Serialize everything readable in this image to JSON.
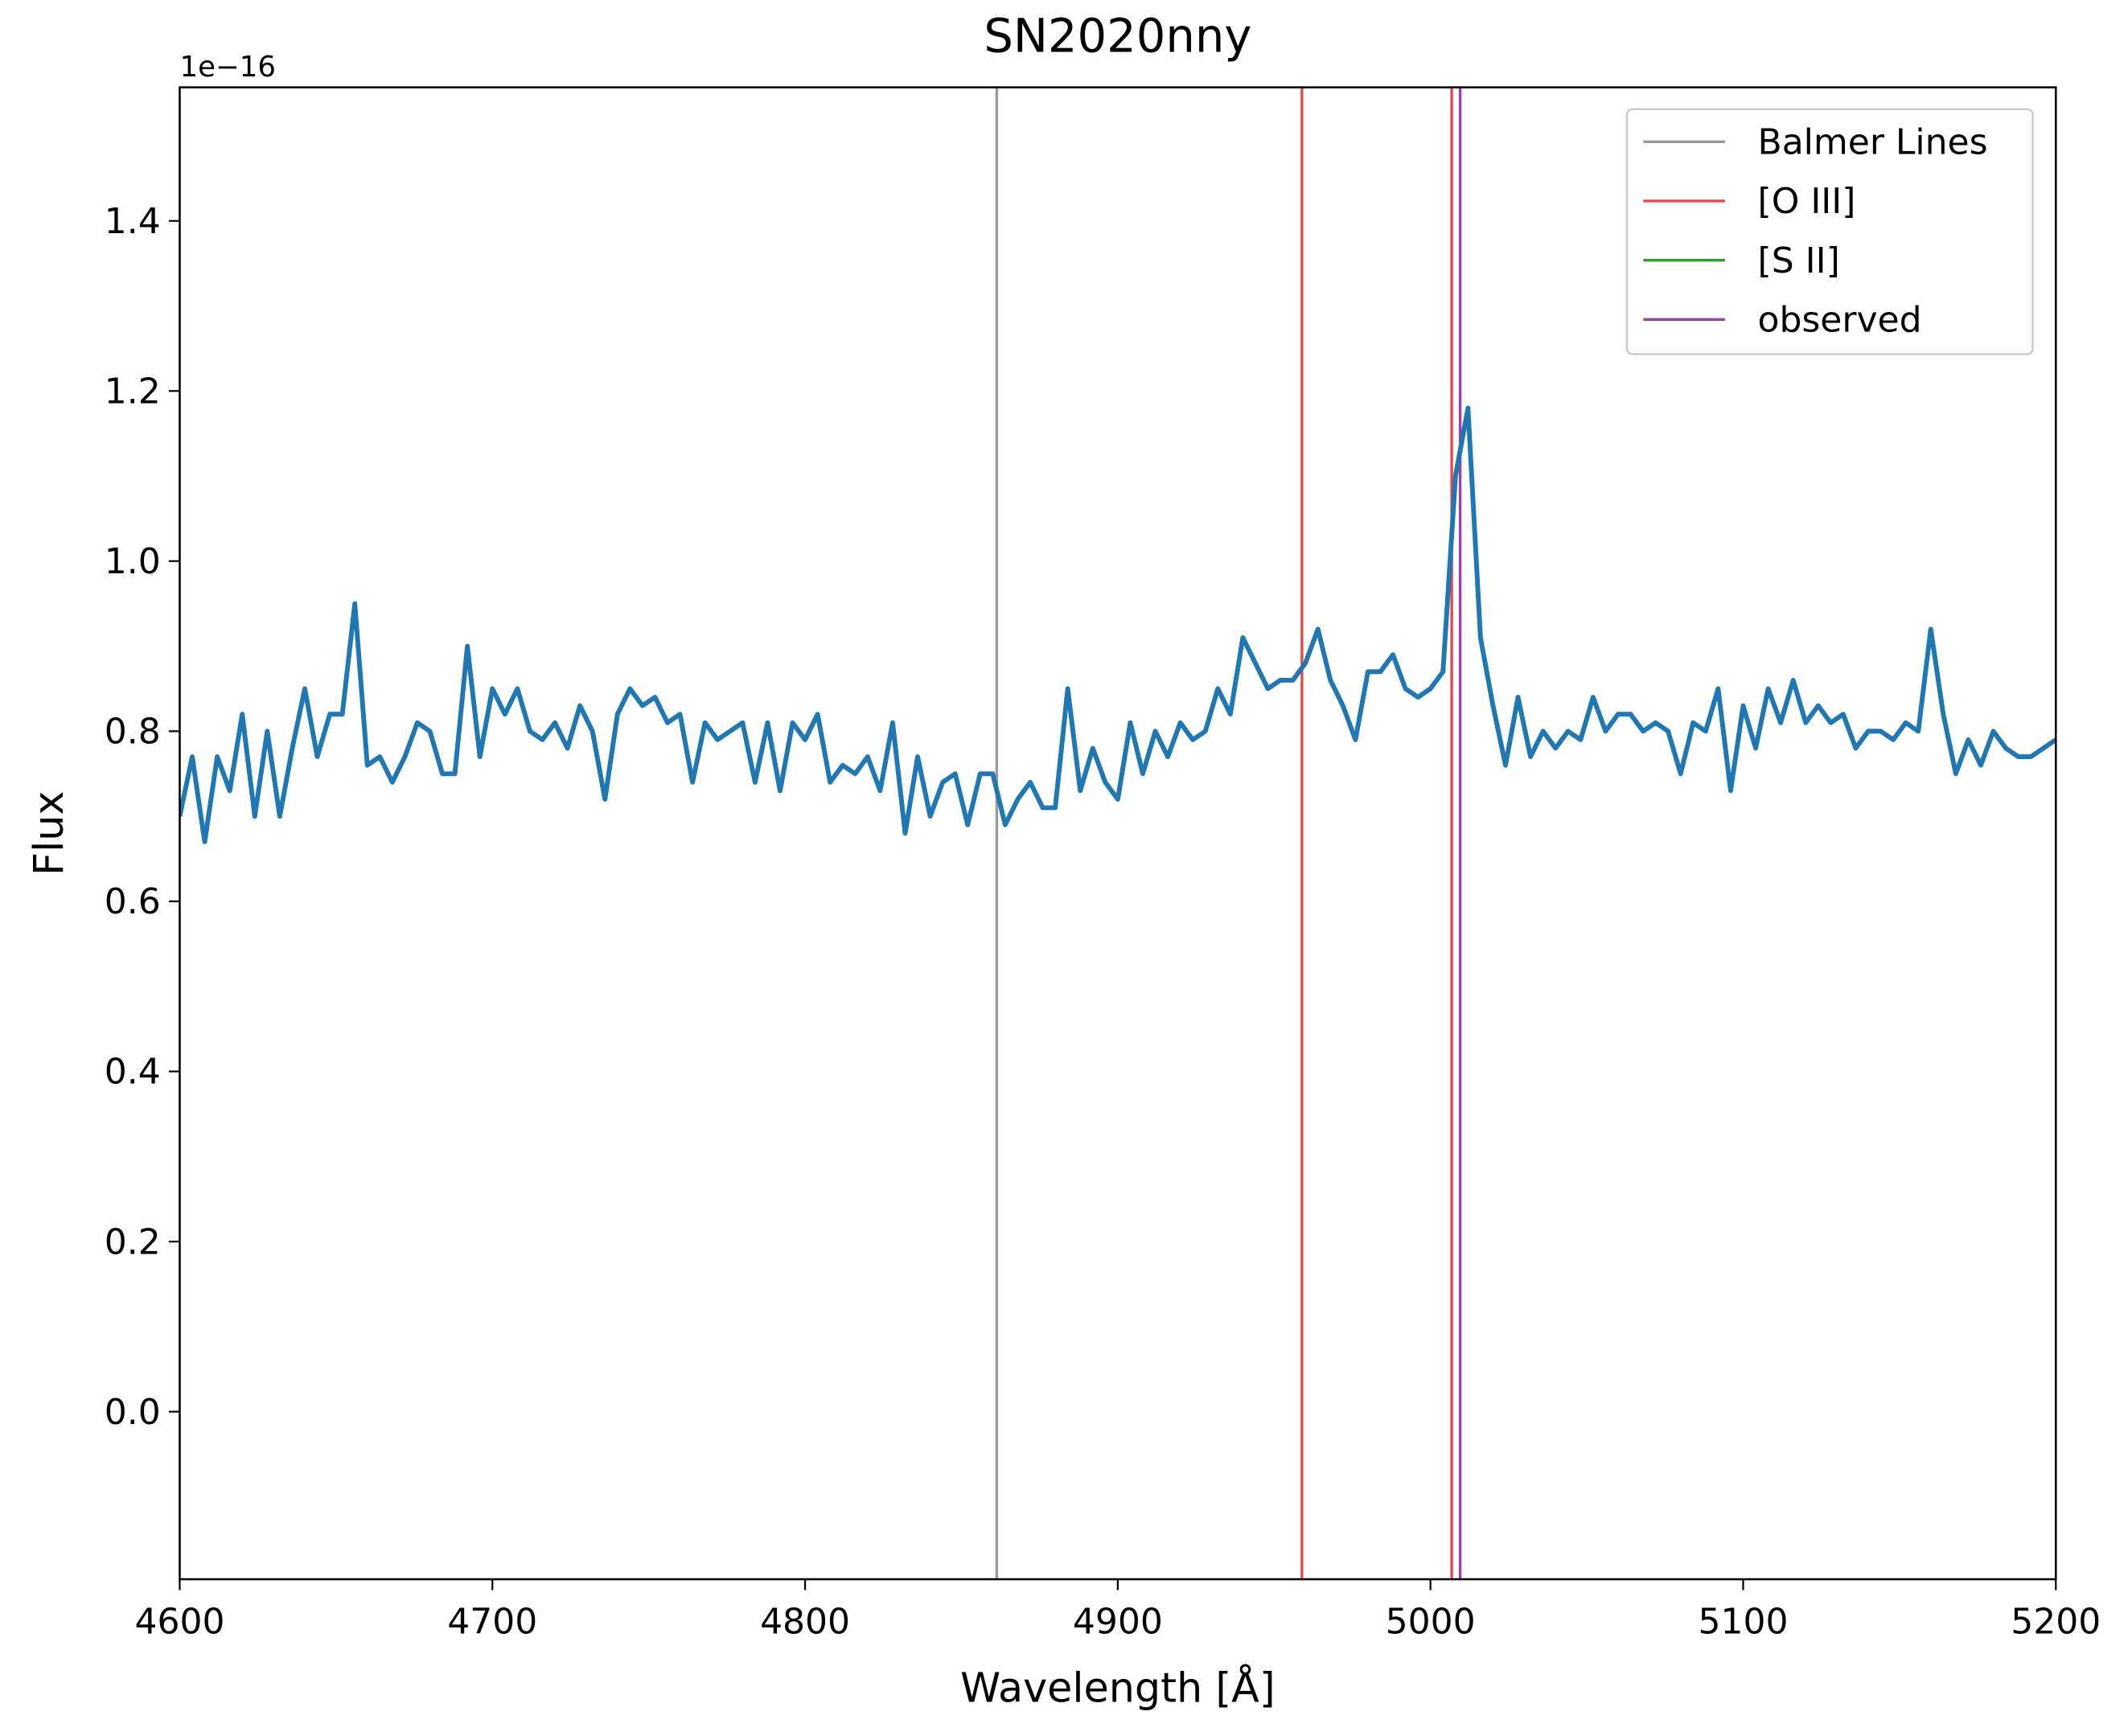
{
  "chart_data": {
    "type": "line",
    "title": "SN2020nny",
    "x_label": "Wavelength [Å]",
    "y_label": "Flux",
    "y_offset_label": "1e−16",
    "x": [
      4600,
      4604,
      4608,
      4612,
      4616,
      4620,
      4624,
      4628,
      4632,
      4636,
      4640,
      4644,
      4648,
      4652,
      4656,
      4660,
      4664,
      4668,
      4672,
      4676,
      4680,
      4684,
      4688,
      4692,
      4696,
      4700,
      4704,
      4708,
      4712,
      4716,
      4720,
      4724,
      4728,
      4732,
      4736,
      4740,
      4744,
      4748,
      4752,
      4756,
      4760,
      4764,
      4768,
      4772,
      4776,
      4780,
      4784,
      4788,
      4792,
      4796,
      4800,
      4804,
      4808,
      4812,
      4816,
      4820,
      4824,
      4828,
      4832,
      4836,
      4840,
      4844,
      4848,
      4852,
      4856,
      4860,
      4864,
      4868,
      4872,
      4876,
      4880,
      4884,
      4888,
      4892,
      4896,
      4900,
      4904,
      4908,
      4912,
      4916,
      4920,
      4924,
      4928,
      4932,
      4936,
      4940,
      4944,
      4948,
      4952,
      4956,
      4960,
      4964,
      4968,
      4972,
      4976,
      4980,
      4984,
      4988,
      4992,
      4996,
      5000,
      5004,
      5008,
      5012,
      5016,
      5020,
      5024,
      5028,
      5032,
      5036,
      5040,
      5044,
      5048,
      5052,
      5056,
      5060,
      5064,
      5068,
      5072,
      5076,
      5080,
      5084,
      5088,
      5092,
      5096,
      5100,
      5104,
      5108,
      5112,
      5116,
      5120,
      5124,
      5128,
      5132,
      5136,
      5140,
      5144,
      5148,
      5152,
      5156,
      5160,
      5164,
      5168,
      5172,
      5176,
      5180,
      5184,
      5188,
      5192,
      5196,
      5200
    ],
    "values": [
      0.7,
      0.77,
      0.67,
      0.77,
      0.73,
      0.82,
      0.7,
      0.8,
      0.7,
      0.78,
      0.85,
      0.77,
      0.82,
      0.82,
      0.95,
      0.76,
      0.77,
      0.74,
      0.77,
      0.81,
      0.8,
      0.75,
      0.75,
      0.9,
      0.77,
      0.85,
      0.82,
      0.85,
      0.8,
      0.79,
      0.81,
      0.78,
      0.83,
      0.8,
      0.72,
      0.82,
      0.85,
      0.83,
      0.84,
      0.81,
      0.82,
      0.74,
      0.81,
      0.79,
      0.8,
      0.81,
      0.74,
      0.81,
      0.73,
      0.81,
      0.79,
      0.82,
      0.74,
      0.76,
      0.75,
      0.77,
      0.73,
      0.81,
      0.68,
      0.77,
      0.7,
      0.74,
      0.75,
      0.69,
      0.75,
      0.75,
      0.69,
      0.72,
      0.74,
      0.71,
      0.71,
      0.85,
      0.73,
      0.78,
      0.74,
      0.72,
      0.81,
      0.75,
      0.8,
      0.77,
      0.81,
      0.79,
      0.8,
      0.85,
      0.82,
      0.91,
      0.88,
      0.85,
      0.86,
      0.86,
      0.88,
      0.92,
      0.86,
      0.83,
      0.79,
      0.87,
      0.87,
      0.89,
      0.85,
      0.84,
      0.85,
      0.87,
      1.1,
      1.18,
      0.91,
      0.83,
      0.76,
      0.84,
      0.77,
      0.8,
      0.78,
      0.8,
      0.79,
      0.84,
      0.8,
      0.82,
      0.82,
      0.8,
      0.81,
      0.8,
      0.75,
      0.81,
      0.8,
      0.85,
      0.73,
      0.83,
      0.78,
      0.85,
      0.81,
      0.86,
      0.81,
      0.83,
      0.81,
      0.82,
      0.78,
      0.8,
      0.8,
      0.79,
      0.81,
      0.8,
      0.92,
      0.82,
      0.75,
      0.79,
      0.76,
      0.8,
      0.78,
      0.77,
      0.77,
      0.78,
      0.79
    ],
    "color": "#1f77b4",
    "reference_lines": [
      {
        "name": "Balmer Lines",
        "color": "#999999",
        "x": [
          4861.3
        ]
      },
      {
        "name": "[O III]",
        "color": "#e8474a",
        "x": [
          4958.9,
          5006.8
        ]
      },
      {
        "name": "[S II]",
        "color": "#3a9a3a",
        "x": []
      },
      {
        "name": "observed",
        "color": "#9b40a8",
        "x": [
          5009.5
        ]
      }
    ],
    "xlim": [
      4600,
      5200
    ],
    "xticks": [
      4600,
      4700,
      4800,
      4900,
      5000,
      5100,
      5200
    ],
    "ylim": [
      -0.197,
      1.557
    ],
    "yticks": [
      {
        "value": 0,
        "label": "0.0"
      },
      0.2,
      0.4,
      0.6,
      0.8,
      {
        "value": 1,
        "label": "1.0"
      },
      1.2,
      1.4
    ],
    "legend": "upper right"
  }
}
